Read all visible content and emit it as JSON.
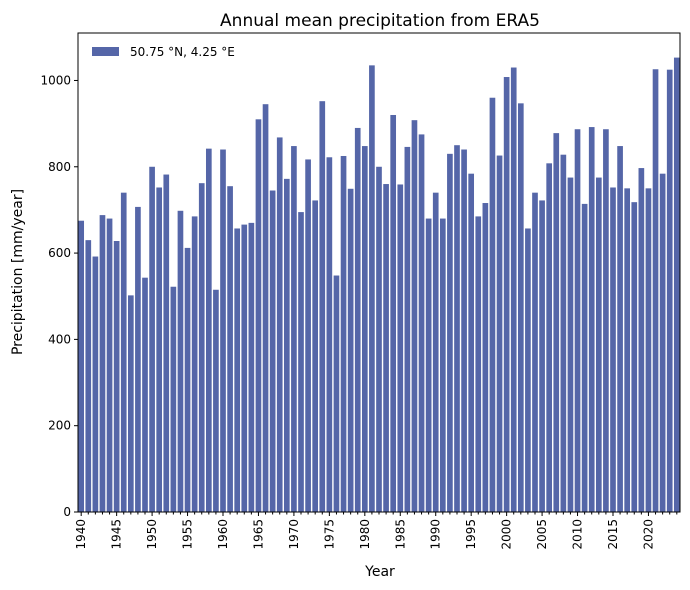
{
  "chart_data": {
    "type": "bar",
    "title": "Annual mean precipitation from ERA5",
    "xlabel": "Year",
    "ylabel": "Precipitation [mm/year]",
    "series": [
      {
        "name": "50.75 °N, 4.25 °E",
        "color": "#5566a8",
        "x": [
          1940,
          1941,
          1942,
          1943,
          1944,
          1945,
          1946,
          1947,
          1948,
          1949,
          1950,
          1951,
          1952,
          1953,
          1954,
          1955,
          1956,
          1957,
          1958,
          1959,
          1960,
          1961,
          1962,
          1963,
          1964,
          1965,
          1966,
          1967,
          1968,
          1969,
          1970,
          1971,
          1972,
          1973,
          1974,
          1975,
          1976,
          1977,
          1978,
          1979,
          1980,
          1981,
          1982,
          1983,
          1984,
          1985,
          1986,
          1987,
          1988,
          1989,
          1990,
          1991,
          1992,
          1993,
          1994,
          1995,
          1996,
          1997,
          1998,
          1999,
          2000,
          2001,
          2002,
          2003,
          2004,
          2005,
          2006,
          2007,
          2008,
          2009,
          2010,
          2011,
          2012,
          2013,
          2014,
          2015,
          2016,
          2017,
          2018,
          2019,
          2020,
          2021,
          2022,
          2023,
          2024
        ],
        "values": [
          675,
          630,
          592,
          688,
          680,
          628,
          740,
          502,
          707,
          543,
          800,
          752,
          782,
          522,
          698,
          612,
          685,
          762,
          842,
          515,
          840,
          755,
          657,
          666,
          670,
          910,
          945,
          745,
          868,
          772,
          848,
          695,
          817,
          722,
          952,
          822,
          548,
          825,
          749,
          890,
          848,
          1035,
          800,
          760,
          920,
          759,
          846,
          908,
          875,
          680,
          740,
          680,
          830,
          850,
          840,
          784,
          685,
          716,
          960,
          826,
          1008,
          1030,
          947,
          657,
          740,
          722,
          808,
          878,
          828,
          775,
          887,
          714,
          892,
          775,
          887,
          752,
          848,
          750,
          718,
          797,
          750,
          1026,
          784,
          1025,
          1053
        ]
      }
    ],
    "ylim": [
      0,
      1110
    ],
    "xlim": [
      1939.55,
      2024.45
    ],
    "yticks": [
      0,
      200,
      400,
      600,
      800,
      1000
    ],
    "xticks": [
      1940,
      1945,
      1950,
      1955,
      1960,
      1965,
      1970,
      1975,
      1980,
      1985,
      1990,
      1995,
      2000,
      2005,
      2010,
      2015,
      2020
    ],
    "legend_position": "top-left",
    "grid": false
  }
}
